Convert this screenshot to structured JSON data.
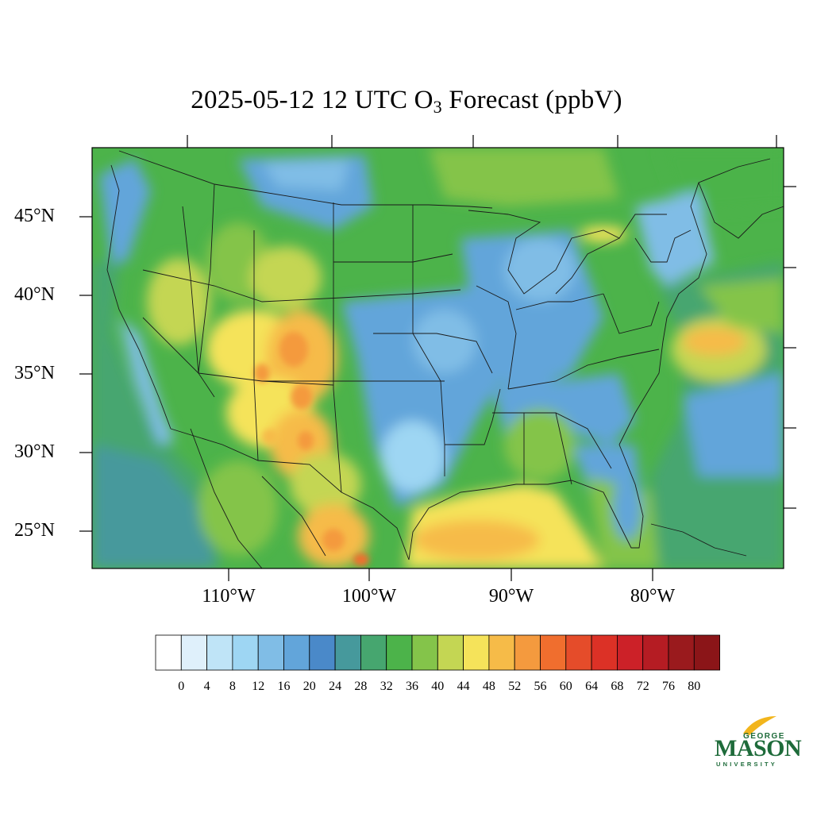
{
  "title": {
    "main": "2025-05-12 12 UTC O",
    "subscript": "3",
    "suffix": " Forecast (ppbV)"
  },
  "latitude_labels": [
    "45°N",
    "40°N",
    "35°N",
    "30°N",
    "25°N"
  ],
  "longitude_labels": [
    "110°W",
    "100°W",
    "90°W",
    "80°W"
  ],
  "colorbar": {
    "tick_labels": [
      "0",
      "4",
      "8",
      "12",
      "16",
      "20",
      "24",
      "28",
      "32",
      "36",
      "40",
      "44",
      "48",
      "52",
      "56",
      "60",
      "64",
      "68",
      "72",
      "76",
      "80"
    ],
    "colors": [
      "#ffffff",
      "#dff0fb",
      "#bfe4f7",
      "#9ed6f3",
      "#80bde6",
      "#62a5da",
      "#4a89c9",
      "#46999c",
      "#46a66f",
      "#4cb34a",
      "#84c44a",
      "#c4d653",
      "#f5e35a",
      "#f6bb48",
      "#f49a3e",
      "#f06e2e",
      "#e54c2a",
      "#dc3126",
      "#cc2128",
      "#b51c23",
      "#9a1a1d",
      "#8b1518"
    ]
  },
  "logo": {
    "line1": "GEORGE",
    "line2": "MASON",
    "line3": "UNIVERSITY",
    "color": "#1e6b3a"
  },
  "map_colors": {
    "background": "#4cb34a",
    "ocean_west": "#46a66f",
    "low_ozone": "#62a5da",
    "very_low": "#9ed6f3",
    "mid": "#84c44a",
    "yellow": "#f5e35a",
    "orange": "#f6bb48",
    "high": "#f49a3e"
  }
}
